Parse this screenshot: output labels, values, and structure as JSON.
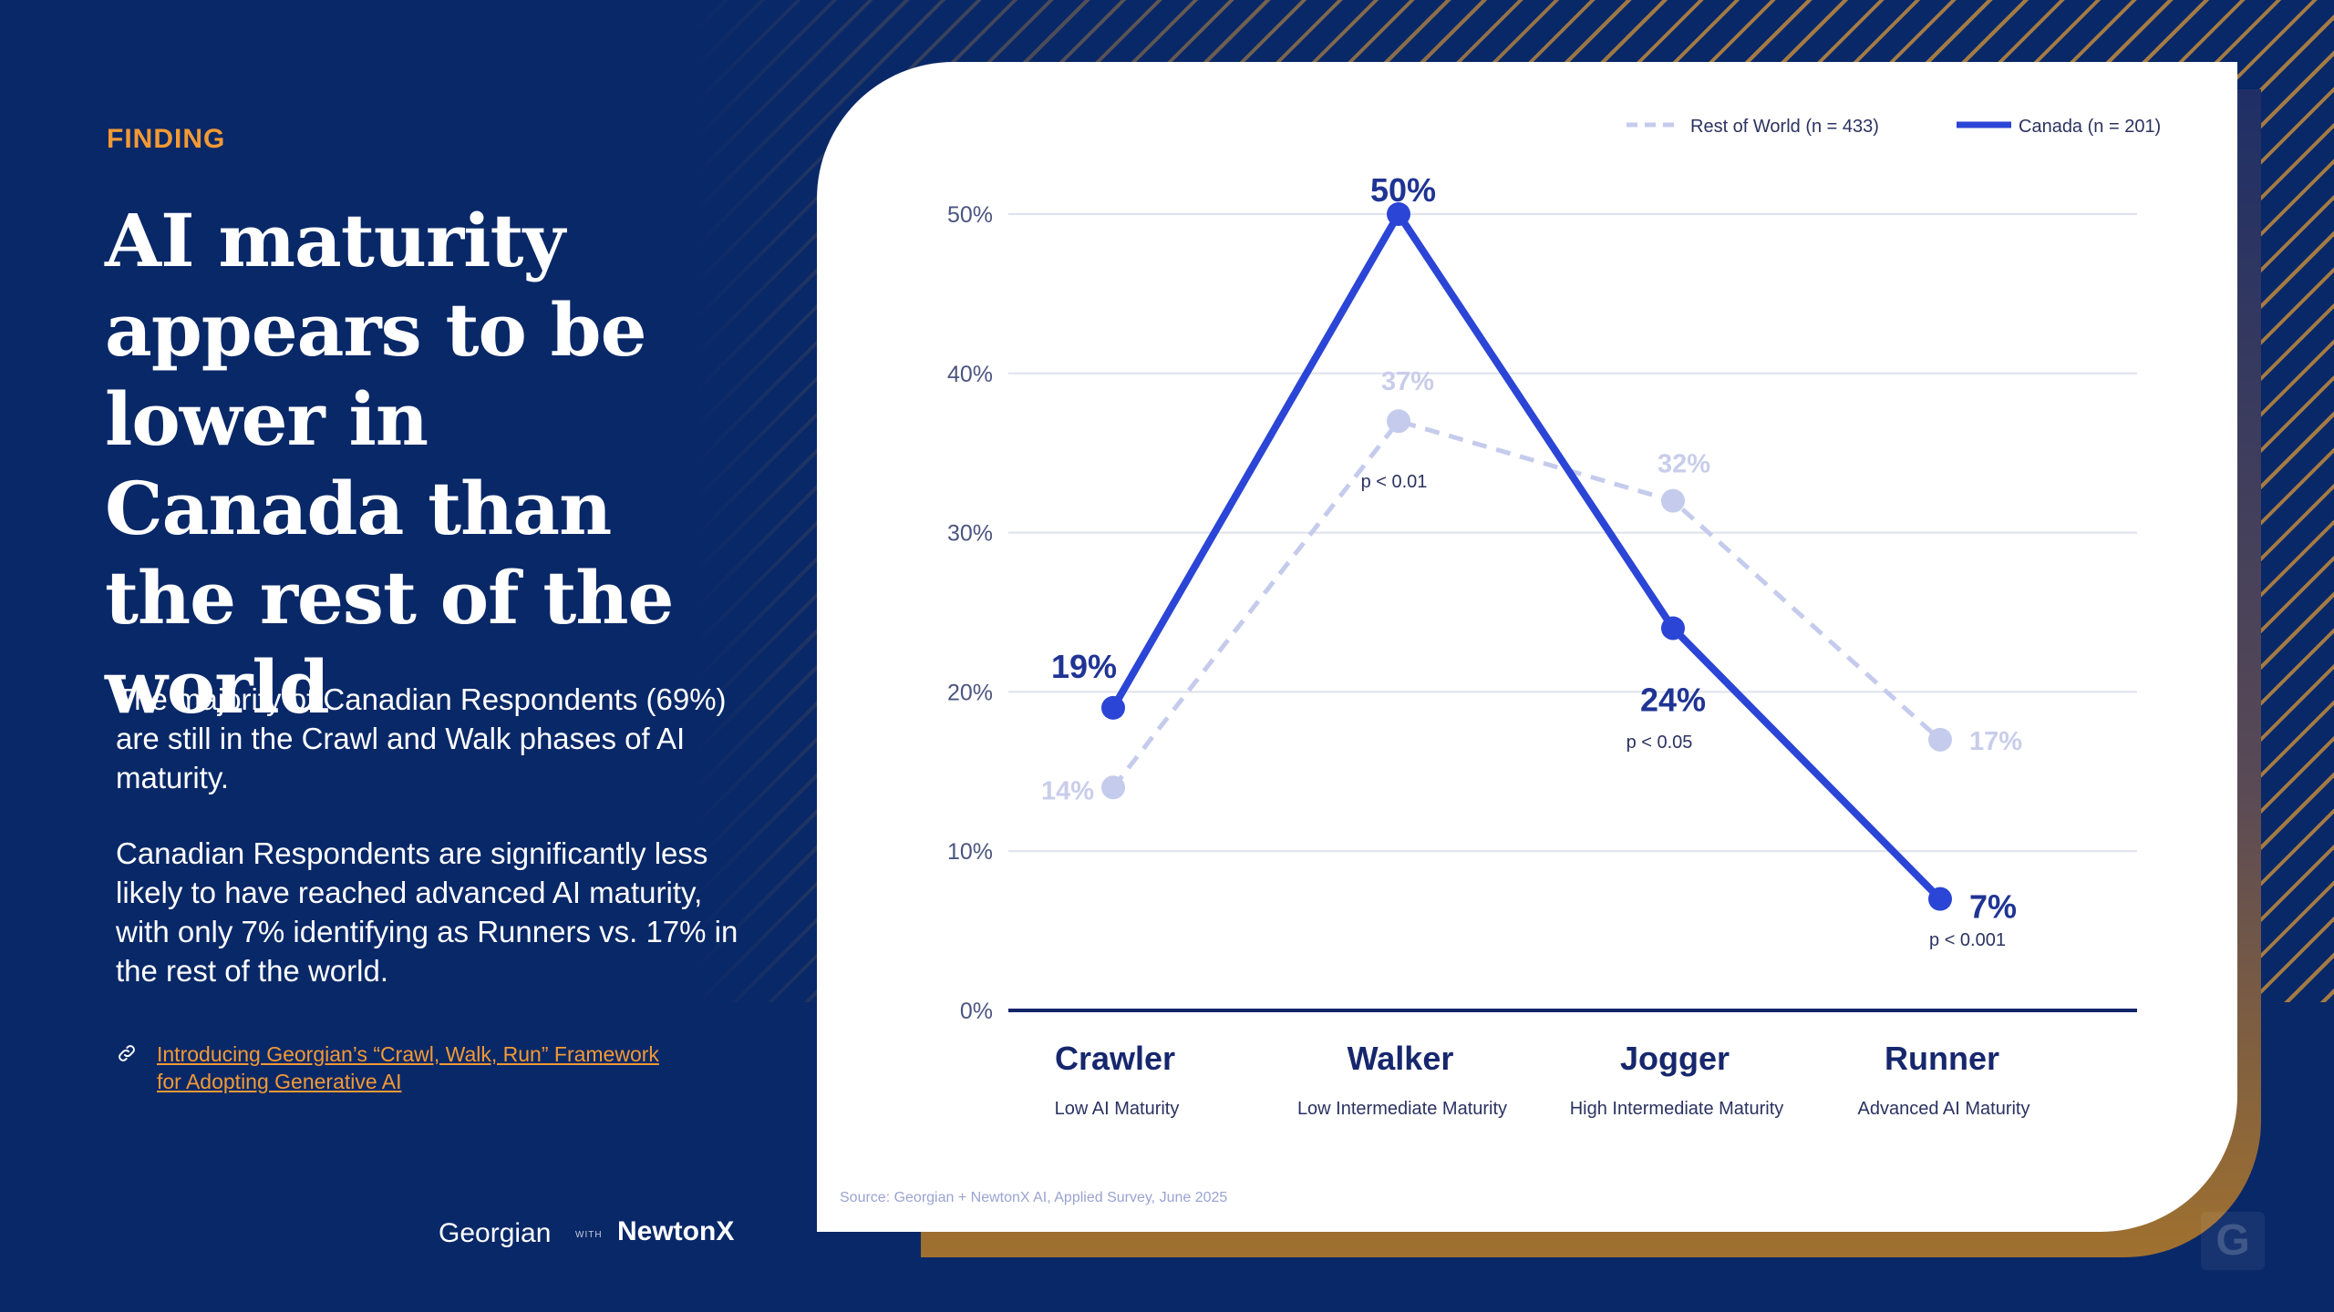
{
  "finding_label": "FINDING",
  "headline": "AI maturity appears to be lower in Canada than the rest of the world",
  "paragraphs": [
    "The majority of Canadian Respondents (69%) are still in the Crawl and Walk phases of AI maturity.",
    "Canadian Respondents are significantly less likely to have reached advanced AI maturity, with only 7% identifying as Runners vs. 17% in the rest of the world."
  ],
  "link_text": "Introducing Georgian’s “Crawl, Walk, Run” Framework for Adopting Generative AI",
  "link_icon": "link-icon",
  "logo": {
    "georgian": "Georgian",
    "with": "WITH",
    "newtonx": "NewtonX"
  },
  "colors": {
    "background": "#092868",
    "accent": "#f39a34",
    "canada": "#2b45d6",
    "rest_of_world": "#c5cbec",
    "axis": "#14256b"
  },
  "chart_data": {
    "type": "line",
    "categories": [
      "Crawler",
      "Walker",
      "Jogger",
      "Runner"
    ],
    "category_subtitles": [
      "Low AI Maturity",
      "Low Intermediate Maturity",
      "High Intermediate Maturity",
      "Advanced AI Maturity"
    ],
    "series": [
      {
        "name": "Rest of World (n = 433)",
        "values": [
          14,
          37,
          32,
          17
        ],
        "labels": [
          "14%",
          "37%",
          "32%",
          "17%"
        ],
        "style": "dashed"
      },
      {
        "name": "Canada  (n = 201)",
        "values": [
          19,
          50,
          24,
          7
        ],
        "labels": [
          "19%",
          "50%",
          "24%",
          "7%"
        ],
        "style": "solid"
      }
    ],
    "significance": [
      "",
      "p < 0.01",
      "p < 0.05",
      "p < 0.001"
    ],
    "yticks": [
      0,
      10,
      20,
      30,
      40,
      50
    ],
    "ytick_labels": [
      "0%",
      "10%",
      "20%",
      "30%",
      "40%",
      "50%"
    ],
    "ylim": [
      0,
      50
    ],
    "legend": "top-right",
    "source": "Source: Georgian + NewtonX AI, Applied Survey, June 2025"
  }
}
